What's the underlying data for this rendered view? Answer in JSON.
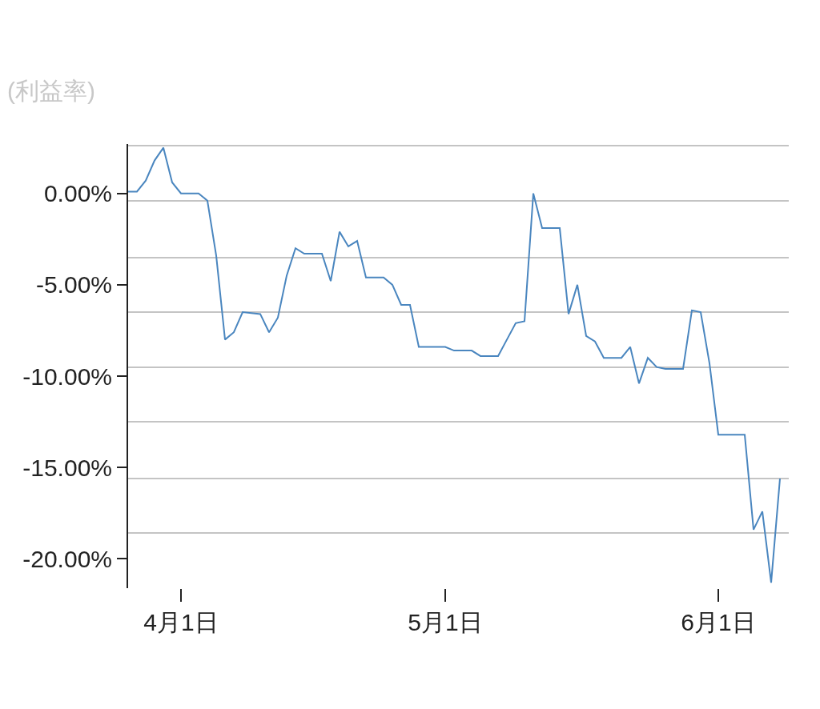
{
  "chart_data": {
    "type": "line",
    "annotations": [
      "(利益率)"
    ],
    "x": [
      "--03-26",
      "--03-27",
      "--03-28",
      "--03-29",
      "--03-30",
      "--03-31",
      "--04-01",
      "--04-03",
      "--04-04",
      "--04-05",
      "--04-06",
      "--04-07",
      "--04-08",
      "--04-10",
      "--04-11",
      "--04-12",
      "--04-13",
      "--04-14",
      "--04-15",
      "--04-17",
      "--04-18",
      "--04-19",
      "--04-20",
      "--04-21",
      "--04-22",
      "--04-24",
      "--04-25",
      "--04-26",
      "--04-27",
      "--04-28",
      "--05-01",
      "--05-02",
      "--05-04",
      "--05-05",
      "--05-07",
      "--05-08",
      "--05-09",
      "--05-10",
      "--05-11",
      "--05-12",
      "--05-14",
      "--05-15",
      "--05-16",
      "--05-17",
      "--05-18",
      "--05-19",
      "--05-21",
      "--05-22",
      "--05-23",
      "--05-24",
      "--05-25",
      "--05-26",
      "--05-28",
      "--05-29",
      "--05-30",
      "--05-31",
      "--06-01",
      "--06-04",
      "--06-05",
      "--06-06",
      "--06-07",
      "--06-08"
    ],
    "series": [
      {
        "color": "#4a86bf",
        "values": [
          0.1,
          0.1,
          0.7,
          1.8,
          2.5,
          0.6,
          0.0,
          0.0,
          -0.4,
          -3.4,
          -8.0,
          -7.6,
          -6.5,
          -6.6,
          -7.6,
          -6.8,
          -4.5,
          -3.0,
          -3.3,
          -3.3,
          -4.8,
          -2.1,
          -2.9,
          -2.6,
          -4.6,
          -4.6,
          -5.0,
          -6.1,
          -6.1,
          -8.4,
          -8.4,
          -8.6,
          -8.6,
          -8.9,
          -8.9,
          -8.0,
          -7.1,
          -7.0,
          0.0,
          -1.9,
          -1.9,
          -6.6,
          -5.0,
          -7.8,
          -8.1,
          -9.0,
          -9.0,
          -8.4,
          -10.4,
          -9.0,
          -9.5,
          -9.6,
          -9.6,
          -6.4,
          -6.5,
          -9.3,
          -13.2,
          -13.2,
          -18.4,
          -17.4,
          -21.3,
          -15.6
        ]
      }
    ],
    "xlim": [
      "--03-26",
      "--06-09"
    ],
    "xticks": [
      {
        "value": "--04-01",
        "label": "4月1日"
      },
      {
        "value": "--05-01",
        "label": "5月1日"
      },
      {
        "value": "--06-01",
        "label": "6月1日"
      }
    ],
    "ylim": [
      -21.6,
      2.7
    ],
    "yticks": [
      {
        "value": 0,
        "label": "0.00%"
      },
      {
        "value": -5,
        "label": "-5.00%"
      },
      {
        "value": -10,
        "label": "-10.00%"
      },
      {
        "value": -15,
        "label": "-15.00%"
      },
      {
        "value": -20,
        "label": "-20.00%"
      },
      {
        "value": 2.6,
        "label": null
      },
      {
        "value": -0.4,
        "label": null
      },
      {
        "value": -3.5,
        "label": null
      },
      {
        "value": -6.5,
        "label": null
      },
      {
        "value": -9.5,
        "label": null
      },
      {
        "value": -12.5,
        "label": null
      },
      {
        "value": -15.6,
        "label": null
      },
      {
        "value": -18.6,
        "label": null
      }
    ],
    "grid": "y",
    "marker": "none",
    "line_style": "solid"
  }
}
